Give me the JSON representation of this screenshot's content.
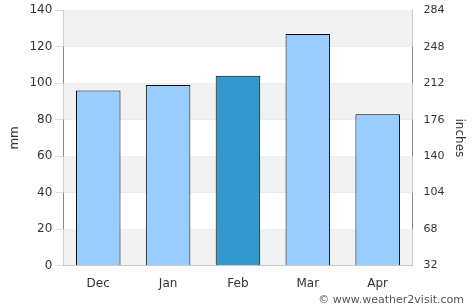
{
  "chart_data": {
    "type": "bar",
    "categories": [
      "Dec",
      "Jan",
      "Feb",
      "Mar",
      "Apr"
    ],
    "values": [
      96,
      99,
      104,
      127,
      83
    ],
    "colors": [
      "#99ccff",
      "#99ccff",
      "#3399cc",
      "#99ccff",
      "#99ccff"
    ],
    "y_label": "mm",
    "y2_label": "inches",
    "ylim": [
      0,
      140
    ],
    "yticks": [
      0,
      20,
      40,
      60,
      80,
      100,
      120,
      140
    ],
    "y2lim": [
      32,
      284
    ],
    "y2ticks": [
      32,
      68,
      104,
      140,
      176,
      212,
      248,
      284
    ],
    "grid": true,
    "annotations": [
      "© www.weather2visit.com"
    ]
  }
}
